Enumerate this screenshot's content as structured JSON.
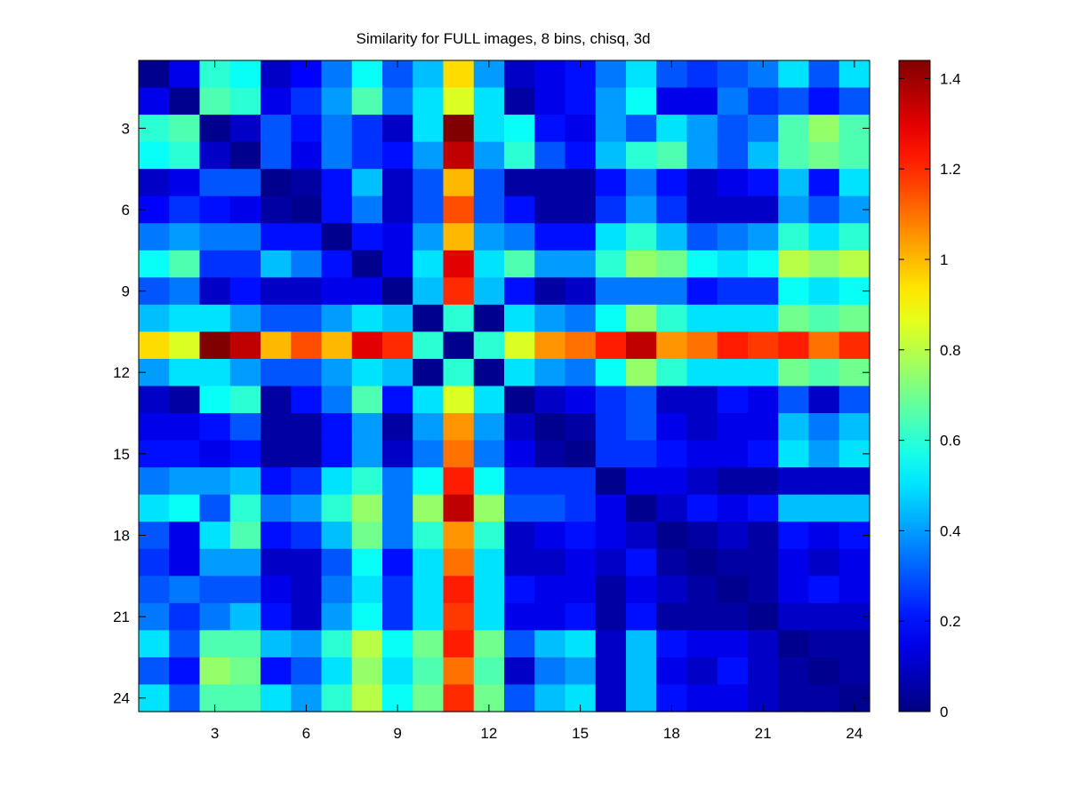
{
  "chart_data": {
    "type": "heatmap",
    "title": "Similarity for FULL images, 8 bins, chisq, 3d",
    "xlabel": "",
    "ylabel": "",
    "rows": 24,
    "cols": 24,
    "x_ticks": [
      "3",
      "6",
      "9",
      "12",
      "15",
      "18",
      "21",
      "24"
    ],
    "y_ticks": [
      "3",
      "6",
      "9",
      "12",
      "15",
      "18",
      "21",
      "24"
    ],
    "colorbar": {
      "min": 0,
      "max": 1.44,
      "ticks": [
        "0",
        "0.2",
        "0.4",
        "0.6",
        "0.8",
        "1",
        "1.2",
        "1.4"
      ],
      "colormap": "jet"
    },
    "grid": false,
    "values": [
      [
        0.02,
        0.15,
        0.6,
        0.55,
        0.1,
        0.18,
        0.35,
        0.55,
        0.3,
        0.45,
        0.95,
        0.4,
        0.1,
        0.15,
        0.2,
        0.35,
        0.5,
        0.3,
        0.25,
        0.3,
        0.35,
        0.5,
        0.3,
        0.5
      ],
      [
        0.15,
        0.02,
        0.65,
        0.6,
        0.15,
        0.25,
        0.4,
        0.65,
        0.35,
        0.5,
        0.85,
        0.5,
        0.05,
        0.15,
        0.2,
        0.4,
        0.55,
        0.15,
        0.15,
        0.35,
        0.25,
        0.3,
        0.2,
        0.3
      ],
      [
        0.6,
        0.65,
        0.02,
        0.1,
        0.3,
        0.2,
        0.35,
        0.25,
        0.1,
        0.5,
        1.44,
        0.5,
        0.55,
        0.2,
        0.15,
        0.4,
        0.3,
        0.5,
        0.4,
        0.3,
        0.35,
        0.65,
        0.75,
        0.65
      ],
      [
        0.55,
        0.6,
        0.1,
        0.02,
        0.3,
        0.15,
        0.35,
        0.25,
        0.2,
        0.4,
        1.35,
        0.4,
        0.6,
        0.3,
        0.2,
        0.45,
        0.6,
        0.65,
        0.4,
        0.3,
        0.45,
        0.65,
        0.7,
        0.65
      ],
      [
        0.1,
        0.15,
        0.3,
        0.3,
        0.02,
        0.05,
        0.2,
        0.45,
        0.1,
        0.3,
        1.0,
        0.3,
        0.05,
        0.05,
        0.05,
        0.2,
        0.35,
        0.2,
        0.1,
        0.15,
        0.2,
        0.45,
        0.2,
        0.5
      ],
      [
        0.18,
        0.25,
        0.2,
        0.15,
        0.05,
        0.02,
        0.2,
        0.35,
        0.1,
        0.3,
        1.15,
        0.3,
        0.2,
        0.05,
        0.05,
        0.25,
        0.4,
        0.25,
        0.1,
        0.1,
        0.1,
        0.4,
        0.3,
        0.4
      ],
      [
        0.35,
        0.4,
        0.35,
        0.35,
        0.2,
        0.2,
        0.02,
        0.2,
        0.15,
        0.4,
        1.0,
        0.4,
        0.35,
        0.2,
        0.2,
        0.5,
        0.6,
        0.45,
        0.3,
        0.35,
        0.4,
        0.6,
        0.5,
        0.6
      ],
      [
        0.55,
        0.65,
        0.25,
        0.25,
        0.45,
        0.35,
        0.2,
        0.02,
        0.15,
        0.5,
        1.3,
        0.5,
        0.65,
        0.4,
        0.4,
        0.6,
        0.75,
        0.7,
        0.55,
        0.5,
        0.55,
        0.8,
        0.75,
        0.8
      ],
      [
        0.3,
        0.35,
        0.1,
        0.2,
        0.1,
        0.1,
        0.15,
        0.15,
        0.02,
        0.45,
        1.2,
        0.45,
        0.2,
        0.05,
        0.1,
        0.35,
        0.35,
        0.35,
        0.2,
        0.25,
        0.25,
        0.55,
        0.5,
        0.55
      ],
      [
        0.45,
        0.5,
        0.5,
        0.4,
        0.3,
        0.3,
        0.4,
        0.5,
        0.45,
        0.02,
        0.6,
        0.02,
        0.5,
        0.4,
        0.35,
        0.55,
        0.75,
        0.6,
        0.5,
        0.5,
        0.5,
        0.7,
        0.65,
        0.7
      ],
      [
        0.95,
        0.85,
        1.44,
        1.35,
        1.0,
        1.15,
        1.0,
        1.3,
        1.2,
        0.6,
        0.02,
        0.6,
        0.85,
        1.05,
        1.1,
        1.22,
        1.35,
        1.05,
        1.1,
        1.22,
        1.18,
        1.22,
        1.1,
        1.2
      ],
      [
        0.4,
        0.5,
        0.5,
        0.4,
        0.3,
        0.3,
        0.4,
        0.5,
        0.45,
        0.02,
        0.6,
        0.02,
        0.5,
        0.4,
        0.35,
        0.55,
        0.75,
        0.6,
        0.5,
        0.5,
        0.5,
        0.7,
        0.65,
        0.7
      ],
      [
        0.1,
        0.05,
        0.55,
        0.6,
        0.05,
        0.2,
        0.35,
        0.65,
        0.2,
        0.5,
        0.85,
        0.5,
        0.02,
        0.1,
        0.15,
        0.25,
        0.3,
        0.1,
        0.1,
        0.2,
        0.15,
        0.3,
        0.1,
        0.3
      ],
      [
        0.15,
        0.15,
        0.2,
        0.3,
        0.05,
        0.05,
        0.2,
        0.4,
        0.05,
        0.4,
        1.05,
        0.4,
        0.1,
        0.02,
        0.05,
        0.25,
        0.3,
        0.15,
        0.1,
        0.15,
        0.15,
        0.45,
        0.35,
        0.45
      ],
      [
        0.2,
        0.2,
        0.15,
        0.2,
        0.05,
        0.05,
        0.2,
        0.4,
        0.1,
        0.35,
        1.1,
        0.35,
        0.15,
        0.05,
        0.02,
        0.25,
        0.25,
        0.2,
        0.15,
        0.15,
        0.2,
        0.5,
        0.4,
        0.5
      ],
      [
        0.35,
        0.4,
        0.4,
        0.45,
        0.2,
        0.25,
        0.5,
        0.6,
        0.35,
        0.55,
        1.22,
        0.55,
        0.25,
        0.25,
        0.25,
        0.02,
        0.15,
        0.15,
        0.1,
        0.05,
        0.05,
        0.1,
        0.1,
        0.1
      ],
      [
        0.5,
        0.55,
        0.3,
        0.6,
        0.35,
        0.4,
        0.6,
        0.75,
        0.35,
        0.75,
        1.35,
        0.75,
        0.3,
        0.3,
        0.25,
        0.15,
        0.02,
        0.1,
        0.2,
        0.15,
        0.2,
        0.45,
        0.45,
        0.45
      ],
      [
        0.3,
        0.15,
        0.5,
        0.65,
        0.2,
        0.25,
        0.45,
        0.7,
        0.35,
        0.6,
        1.05,
        0.6,
        0.1,
        0.15,
        0.2,
        0.15,
        0.1,
        0.02,
        0.05,
        0.1,
        0.05,
        0.2,
        0.15,
        0.2
      ],
      [
        0.25,
        0.15,
        0.4,
        0.4,
        0.1,
        0.1,
        0.3,
        0.55,
        0.2,
        0.5,
        1.1,
        0.5,
        0.1,
        0.1,
        0.15,
        0.1,
        0.2,
        0.05,
        0.02,
        0.05,
        0.05,
        0.15,
        0.1,
        0.15
      ],
      [
        0.3,
        0.35,
        0.3,
        0.3,
        0.15,
        0.1,
        0.35,
        0.5,
        0.25,
        0.5,
        1.22,
        0.5,
        0.2,
        0.15,
        0.15,
        0.05,
        0.15,
        0.1,
        0.05,
        0.02,
        0.05,
        0.15,
        0.2,
        0.15
      ],
      [
        0.35,
        0.25,
        0.35,
        0.45,
        0.2,
        0.1,
        0.4,
        0.55,
        0.25,
        0.5,
        1.18,
        0.5,
        0.15,
        0.15,
        0.2,
        0.05,
        0.2,
        0.05,
        0.05,
        0.05,
        0.02,
        0.1,
        0.1,
        0.1
      ],
      [
        0.5,
        0.3,
        0.65,
        0.65,
        0.45,
        0.4,
        0.6,
        0.8,
        0.55,
        0.7,
        1.22,
        0.7,
        0.3,
        0.45,
        0.5,
        0.1,
        0.45,
        0.2,
        0.15,
        0.15,
        0.1,
        0.02,
        0.05,
        0.05
      ],
      [
        0.3,
        0.2,
        0.75,
        0.7,
        0.2,
        0.3,
        0.5,
        0.75,
        0.5,
        0.65,
        1.1,
        0.65,
        0.1,
        0.35,
        0.4,
        0.1,
        0.45,
        0.15,
        0.1,
        0.2,
        0.1,
        0.05,
        0.02,
        0.05
      ],
      [
        0.5,
        0.3,
        0.65,
        0.65,
        0.5,
        0.4,
        0.6,
        0.8,
        0.55,
        0.7,
        1.2,
        0.7,
        0.3,
        0.45,
        0.5,
        0.1,
        0.45,
        0.2,
        0.15,
        0.15,
        0.1,
        0.05,
        0.05,
        0.02
      ]
    ]
  }
}
